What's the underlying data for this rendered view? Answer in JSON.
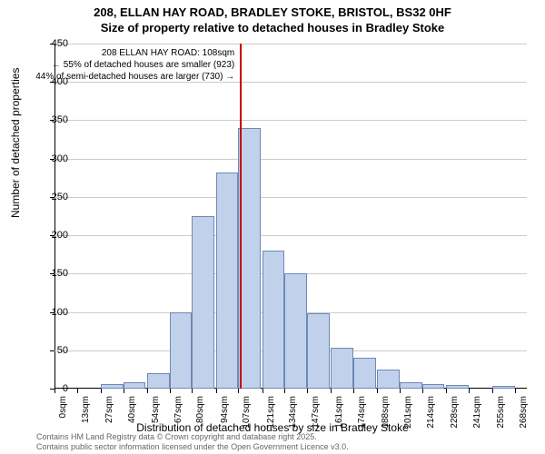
{
  "title": {
    "line1": "208, ELLAN HAY ROAD, BRADLEY STOKE, BRISTOL, BS32 0HF",
    "line2": "Size of property relative to detached houses in Bradley Stoke",
    "fontsize": 13,
    "color": "#000000"
  },
  "chart": {
    "type": "histogram",
    "background_color": "#ffffff",
    "grid_color": "#cccccc",
    "bar_fill": "#c2d1eb",
    "bar_border": "#6d89b6",
    "bar_border_width": 1,
    "marker_color": "#c40000",
    "marker_x_value": 108,
    "ylim": [
      0,
      450
    ],
    "ytick_step": 50,
    "yticks": [
      0,
      50,
      100,
      150,
      200,
      250,
      300,
      350,
      400,
      450
    ],
    "xlim": [
      0,
      275
    ],
    "xticks": [
      0,
      13,
      27,
      40,
      54,
      67,
      80,
      94,
      107,
      121,
      134,
      147,
      161,
      174,
      188,
      201,
      214,
      228,
      241,
      255,
      268
    ],
    "xtick_suffix": "sqm",
    "bins": [
      {
        "x": 0,
        "count": 0
      },
      {
        "x": 13,
        "count": 0
      },
      {
        "x": 27,
        "count": 6
      },
      {
        "x": 40,
        "count": 8
      },
      {
        "x": 54,
        "count": 20
      },
      {
        "x": 67,
        "count": 100
      },
      {
        "x": 80,
        "count": 225
      },
      {
        "x": 94,
        "count": 282
      },
      {
        "x": 107,
        "count": 340
      },
      {
        "x": 121,
        "count": 180
      },
      {
        "x": 134,
        "count": 150
      },
      {
        "x": 147,
        "count": 98
      },
      {
        "x": 161,
        "count": 53
      },
      {
        "x": 174,
        "count": 40
      },
      {
        "x": 188,
        "count": 25
      },
      {
        "x": 201,
        "count": 8
      },
      {
        "x": 214,
        "count": 6
      },
      {
        "x": 228,
        "count": 5
      },
      {
        "x": 241,
        "count": 0
      },
      {
        "x": 255,
        "count": 3
      },
      {
        "x": 268,
        "count": 0
      }
    ],
    "ylabel": "Number of detached properties",
    "xlabel": "Distribution of detached houses by size in Bradley Stoke",
    "label_fontsize": 12,
    "tick_fontsize": 11
  },
  "annotation": {
    "line1": "208 ELLAN HAY ROAD: 108sqm",
    "line2": "← 55% of detached houses are smaller (923)",
    "line3": "44% of semi-detached houses are larger (730) →",
    "fontsize": 10,
    "color": "#000000"
  },
  "footer": {
    "line1": "Contains HM Land Registry data © Crown copyright and database right 2025.",
    "line2": "Contains public sector information licensed under the Open Government Licence v3.0.",
    "color": "#666666",
    "fontsize": 9
  }
}
